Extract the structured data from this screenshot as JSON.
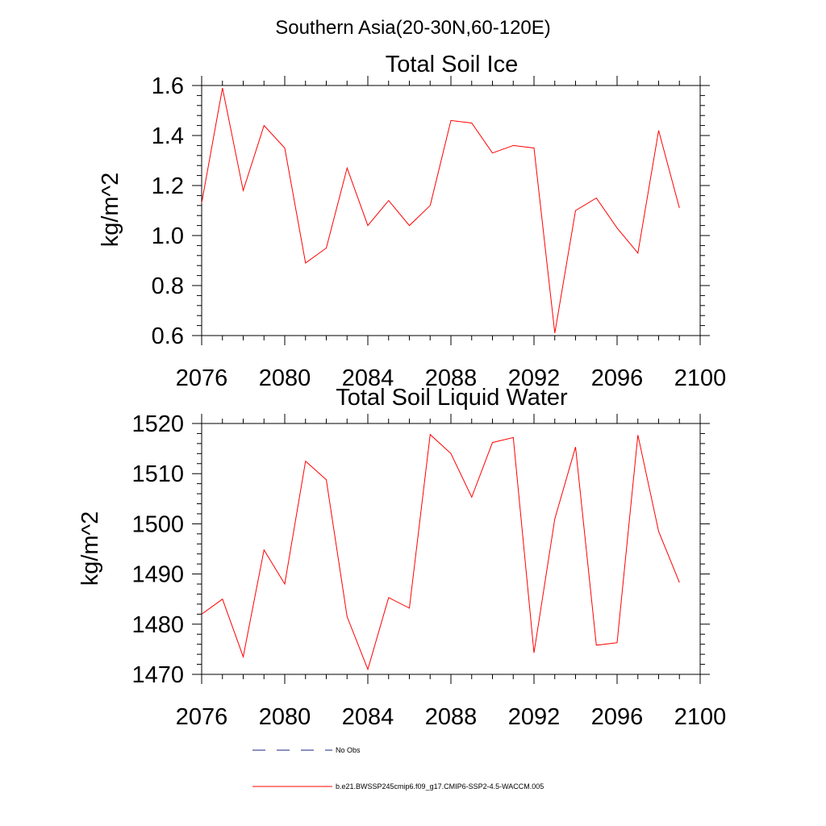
{
  "figure_title": "Southern Asia(20-30N,60-120E)",
  "chart_data": [
    {
      "type": "line",
      "title": "Total Soil Ice",
      "xlabel": "",
      "ylabel": "kg/m^2",
      "xlim": [
        2076,
        2100
      ],
      "ylim": [
        0.6,
        1.65
      ],
      "xticks": [
        2076,
        2080,
        2084,
        2088,
        2092,
        2096,
        2100
      ],
      "xtick_labels": [
        "2076",
        "2080",
        "2084",
        "2088",
        "2092",
        "2096",
        "2100"
      ],
      "yticks": [
        0.6,
        0.8,
        1.0,
        1.2,
        1.4,
        1.6
      ],
      "ytick_labels": [
        "0.6",
        "0.8",
        "1.0",
        "1.2",
        "1.4",
        "1.6"
      ],
      "x": [
        2076,
        2077,
        2078,
        2079,
        2080,
        2081,
        2082,
        2083,
        2084,
        2085,
        2086,
        2087,
        2088,
        2089,
        2090,
        2091,
        2092,
        2093,
        2094,
        2095,
        2096,
        2097,
        2098,
        2099
      ],
      "series": [
        {
          "name": "b.e21.BWSSP245cmip6.f09_g17.CMIP6-SSP2-4.5-WACCM.005",
          "color": "#ff0000",
          "values": [
            1.13,
            1.59,
            1.18,
            1.44,
            1.35,
            0.89,
            0.95,
            1.27,
            1.04,
            1.14,
            1.04,
            1.12,
            1.46,
            1.45,
            1.33,
            1.36,
            1.35,
            0.61,
            1.1,
            1.15,
            1.03,
            0.93,
            1.42,
            1.11
          ]
        }
      ],
      "grid": false
    },
    {
      "type": "line",
      "title": "Total Soil Liquid Water",
      "xlabel": "",
      "ylabel": "kg/m^2",
      "xlim": [
        2076,
        2100
      ],
      "ylim": [
        1470,
        1522
      ],
      "xticks": [
        2076,
        2080,
        2084,
        2088,
        2092,
        2096,
        2100
      ],
      "xtick_labels": [
        "2076",
        "2080",
        "2084",
        "2088",
        "2092",
        "2096",
        "2100"
      ],
      "yticks": [
        1470,
        1480,
        1490,
        1500,
        1510,
        1520
      ],
      "ytick_labels": [
        "1470",
        "1480",
        "1490",
        "1500",
        "1510",
        "1520"
      ],
      "x": [
        2076,
        2077,
        2078,
        2079,
        2080,
        2081,
        2082,
        2083,
        2084,
        2085,
        2086,
        2087,
        2088,
        2089,
        2090,
        2091,
        2092,
        2093,
        2094,
        2095,
        2096,
        2097,
        2098,
        2099
      ],
      "series": [
        {
          "name": "b.e21.BWSSP245cmip6.f09_g17.CMIP6-SSP2-4.5-WACCM.005",
          "color": "#ff0000",
          "values": [
            1482.0,
            1485.0,
            1473.5,
            1494.8,
            1488.0,
            1512.5,
            1508.8,
            1481.5,
            1471.0,
            1485.3,
            1483.2,
            1517.8,
            1514.0,
            1505.3,
            1516.2,
            1517.2,
            1474.3,
            1501.0,
            1515.3,
            1475.8,
            1476.3,
            1517.7,
            1498.5,
            1488.3
          ]
        }
      ],
      "grid": false
    }
  ],
  "legend": {
    "placement": "bottom",
    "entries": [
      {
        "label": "No Obs",
        "color": "#1a237e",
        "style": "dashed"
      },
      {
        "label": "b.e21.BWSSP245cmip6.f09_g17.CMIP6-SSP2-4.5-WACCM.005",
        "color": "#ff0000",
        "style": "solid"
      }
    ]
  }
}
